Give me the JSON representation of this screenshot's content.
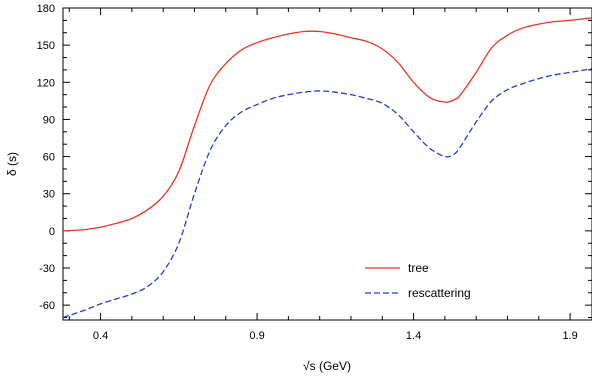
{
  "chart_data": {
    "type": "line",
    "xlabel": "√s (GeV)",
    "ylabel": "δ (s)",
    "xlim": [
      0.28,
      1.97
    ],
    "ylim": [
      -72,
      180
    ],
    "x_ticks": [
      0.4,
      0.9,
      1.4,
      1.9
    ],
    "x_tick_labels": [
      "0.4",
      "0.9",
      "1.4",
      "1.9"
    ],
    "y_ticks": [
      -60,
      -30,
      0,
      30,
      60,
      90,
      120,
      150,
      180
    ],
    "y_tick_labels": [
      "-60",
      "-30",
      "0",
      "30",
      "60",
      "90",
      "120",
      "150",
      "180"
    ],
    "grid": false,
    "legend_position": "lower-right",
    "series": [
      {
        "name": "tree",
        "color": "#e8361f",
        "dash": "solid",
        "x": [
          0.28,
          0.35,
          0.4,
          0.45,
          0.5,
          0.55,
          0.6,
          0.65,
          0.7,
          0.75,
          0.8,
          0.85,
          0.9,
          0.95,
          1.0,
          1.05,
          1.1,
          1.15,
          1.2,
          1.25,
          1.3,
          1.35,
          1.4,
          1.45,
          1.5,
          1.53,
          1.55,
          1.6,
          1.65,
          1.7,
          1.75,
          1.8,
          1.85,
          1.9,
          1.97
        ],
        "y": [
          0,
          1,
          3,
          6,
          10,
          17,
          28,
          48,
          85,
          118,
          135,
          146,
          152,
          156,
          159,
          161,
          161,
          159,
          156,
          153,
          147,
          136,
          120,
          108,
          104,
          106,
          110,
          128,
          148,
          158,
          164,
          167,
          169,
          170,
          172
        ]
      },
      {
        "name": "rescattering",
        "color": "#1f3fd0",
        "dash": "dashed",
        "x": [
          0.28,
          0.35,
          0.4,
          0.45,
          0.5,
          0.55,
          0.6,
          0.65,
          0.7,
          0.75,
          0.8,
          0.85,
          0.9,
          0.95,
          1.0,
          1.05,
          1.1,
          1.15,
          1.2,
          1.25,
          1.3,
          1.35,
          1.4,
          1.45,
          1.5,
          1.53,
          1.55,
          1.6,
          1.65,
          1.7,
          1.75,
          1.8,
          1.85,
          1.9,
          1.97
        ],
        "y": [
          -70,
          -64,
          -59,
          -55,
          -51,
          -45,
          -33,
          -10,
          30,
          65,
          85,
          96,
          102,
          107,
          110,
          112,
          113,
          112,
          110,
          107,
          103,
          94,
          80,
          67,
          60,
          62,
          68,
          88,
          105,
          114,
          119,
          123,
          126,
          128,
          131
        ]
      }
    ]
  }
}
